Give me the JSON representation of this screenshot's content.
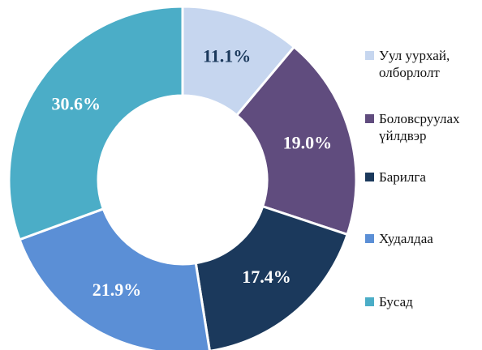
{
  "chart_data": {
    "type": "donut",
    "categories": [
      "Уул уурхай, олборлолт",
      "Боловсруулах үйлдвэр",
      "Барилга",
      "Худалдаа",
      "Бусад"
    ],
    "values": [
      11.1,
      19.0,
      17.4,
      21.9,
      30.6
    ],
    "value_labels": [
      "11.1%",
      "19.0%",
      "17.4%",
      "21.9%",
      "30.6%"
    ],
    "colors": [
      "#c6d6ef",
      "#604c7e",
      "#1b395c",
      "#5b8fd6",
      "#4badc7"
    ],
    "label_colors": [
      "#1b395c",
      "#ffffff",
      "#ffffff",
      "#ffffff",
      "#ffffff"
    ],
    "legend": "right"
  }
}
